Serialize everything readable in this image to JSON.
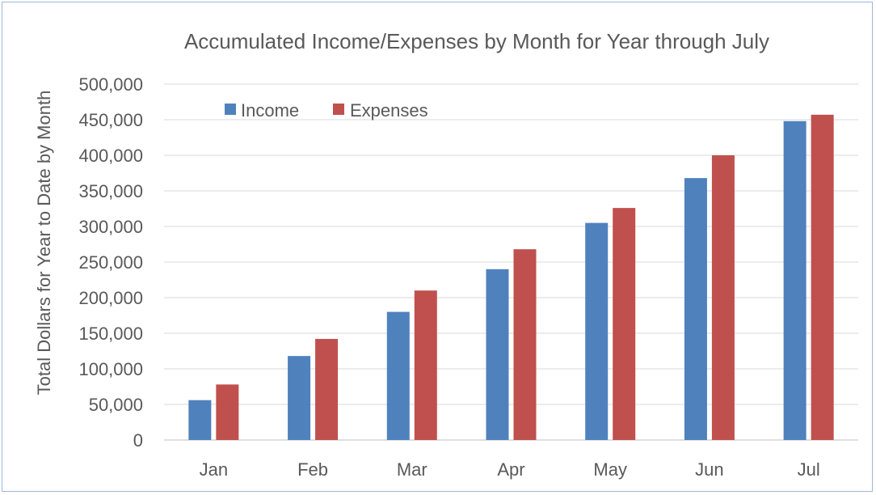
{
  "chart_data": {
    "type": "bar",
    "title": "Accumulated Income/Expenses by Month for Year through July",
    "xlabel": "",
    "ylabel": "Total Dollars for Year to Date by Month",
    "categories": [
      "Jan",
      "Feb",
      "Mar",
      "Apr",
      "May",
      "Jun",
      "Jul"
    ],
    "series": [
      {
        "name": "Income",
        "color": "#4f81bd",
        "values": [
          56000,
          118000,
          180000,
          240000,
          305000,
          368000,
          448000
        ]
      },
      {
        "name": "Expenses",
        "color": "#c0504d",
        "values": [
          78000,
          142000,
          210000,
          268000,
          326000,
          400000,
          457000
        ]
      }
    ],
    "ylim": [
      0,
      500000
    ],
    "yticks": [
      0,
      50000,
      100000,
      150000,
      200000,
      250000,
      300000,
      350000,
      400000,
      450000,
      500000
    ],
    "ytick_labels": [
      "0",
      "50,000",
      "100,000",
      "150,000",
      "200,000",
      "250,000",
      "300,000",
      "350,000",
      "400,000",
      "450,000",
      "500,000"
    ],
    "grid": true,
    "legend_position": "top-left"
  }
}
